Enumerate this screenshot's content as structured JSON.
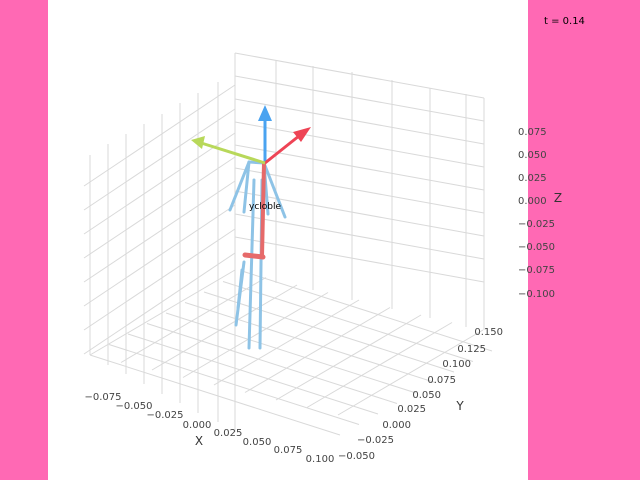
{
  "colors": {
    "side_panel": "#ff69b4",
    "canvas": "#ffffff",
    "grid": "#d9d9d9",
    "tick_text": "#444444",
    "arrow_blue": "#4aa3f0",
    "arrow_red": "#ee4455",
    "arrow_green": "#b8d85a",
    "limb_light": "#8ec3e6",
    "torso_red": "#e66a6a"
  },
  "status": {
    "time_label": "t = 0.14"
  },
  "scene_label": "ycloble",
  "axes": {
    "x": {
      "label": "X",
      "ticks": [
        "−0.075",
        "−0.050",
        "−0.025",
        "0.000",
        "0.025",
        "0.050",
        "0.075",
        "0.100"
      ]
    },
    "y": {
      "label": "Y",
      "ticks": [
        "−0.050",
        "−0.025",
        "0.000",
        "0.025",
        "0.050",
        "0.075",
        "0.100",
        "0.125",
        "0.150"
      ]
    },
    "z": {
      "label": "Z",
      "ticks": [
        "0.075",
        "0.050",
        "0.025",
        "0.000",
        "−0.025",
        "−0.050",
        "−0.075",
        "−0.100"
      ]
    }
  },
  "icons": {
    "blue_arrow": "arrow-up-icon",
    "red_arrow": "arrow-diagonal-icon",
    "green_arrow": "arrow-left-icon"
  }
}
